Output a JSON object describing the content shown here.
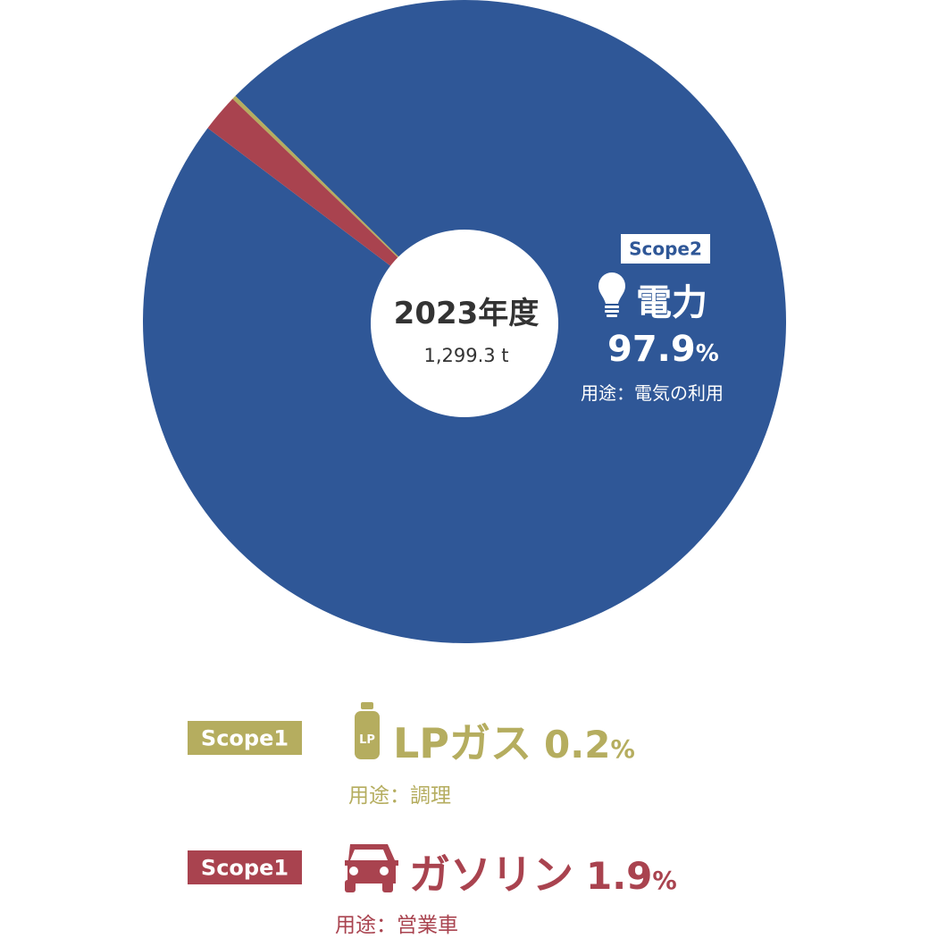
{
  "chart_data": {
    "type": "pie",
    "center_title": "2023年度",
    "center_value": "1,299.3 t",
    "categories": [
      "電力",
      "LPガス",
      "ガソリン"
    ],
    "values": [
      97.9,
      0.2,
      1.9
    ],
    "unit": "%",
    "colors": [
      "#2f5797",
      "#b5ad5f",
      "#a9434f"
    ],
    "scopes": [
      "Scope2",
      "Scope1",
      "Scope1"
    ],
    "usages": [
      "用途：電気の利用",
      "用途：調理",
      "用途：営業車"
    ],
    "icon_text": "LP"
  }
}
